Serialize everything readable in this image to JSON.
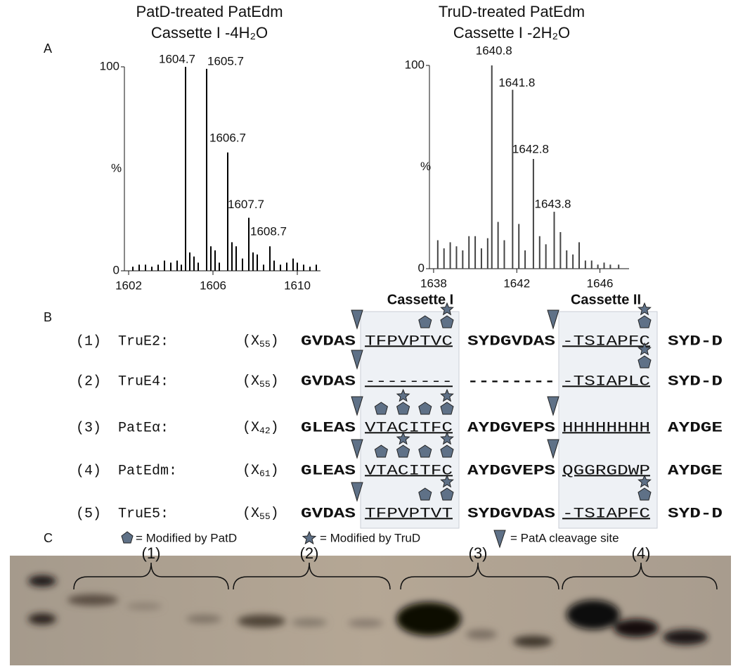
{
  "panel_labels": [
    "A",
    "B",
    "C"
  ],
  "chart_data": [
    {
      "type": "bar",
      "title": "PatD-treated PatEdm",
      "subtitle": "Cassette I -4H₂O",
      "y_label": "%",
      "xlim": [
        1601.8,
        1611.1
      ],
      "ylim": [
        0,
        100
      ],
      "xticks": [
        1602,
        1606,
        1610
      ],
      "yticks": [
        0,
        100
      ],
      "series": [
        {
          "color": "#000000",
          "x": [
            1602.2,
            1602.5,
            1602.8,
            1603.1,
            1603.4,
            1603.7,
            1604.0,
            1604.3,
            1604.5,
            1604.9,
            1605.1,
            1605.3,
            1605.9,
            1606.1,
            1606.3,
            1606.9,
            1607.1,
            1607.4,
            1607.9,
            1608.1,
            1608.4,
            1608.9,
            1609.2,
            1609.5,
            1609.8,
            1610.0,
            1610.3,
            1610.6,
            1610.9
          ],
          "values": [
            2,
            3,
            3,
            2,
            3,
            5,
            4,
            5,
            3,
            9,
            7,
            4,
            12,
            10,
            4,
            14,
            12,
            6,
            9,
            8,
            3,
            5,
            3,
            4,
            6,
            4,
            3,
            2,
            3
          ]
        },
        {
          "color": "#000000",
          "labeled": true,
          "x": [
            1604.7,
            1605.7,
            1606.7,
            1607.7,
            1608.7
          ],
          "values": [
            100,
            99,
            58,
            26,
            12
          ]
        }
      ]
    },
    {
      "type": "bar",
      "title": "TruD-treated PatEdm",
      "subtitle": "Cassette I -2H₂O",
      "y_label": "%",
      "xlim": [
        1637.8,
        1647.4
      ],
      "ylim": [
        0,
        100
      ],
      "xticks": [
        1638,
        1642,
        1646
      ],
      "yticks": [
        0,
        100
      ],
      "series": [
        {
          "color": "#444444",
          "x": [
            1638.2,
            1638.5,
            1638.8,
            1639.1,
            1639.4,
            1639.7,
            1640.0,
            1640.3,
            1640.6,
            1641.1,
            1641.4,
            1642.1,
            1642.4,
            1643.1,
            1643.4,
            1644.1,
            1644.4,
            1644.7,
            1645.0,
            1645.3,
            1645.6,
            1645.9,
            1646.2,
            1646.5,
            1646.9
          ],
          "values": [
            14,
            10,
            13,
            11,
            9,
            16,
            16,
            10,
            15,
            23,
            14,
            22,
            9,
            16,
            12,
            18,
            9,
            7,
            13,
            4,
            4,
            2,
            3,
            2,
            2
          ]
        },
        {
          "color": "#444444",
          "labeled": true,
          "x": [
            1640.8,
            1641.8,
            1642.8,
            1643.8
          ],
          "values": [
            100,
            88,
            54,
            28
          ]
        }
      ]
    }
  ],
  "alignment": {
    "cassette_headers": [
      "Cassette I",
      "Cassette II"
    ],
    "count_prefix": "(X",
    "count_suffix": ")",
    "rows": [
      {
        "number": "(1)",
        "name": "TruE2:",
        "count": "55",
        "leader": "GVDAS",
        "cassette1": "TFPVPTVC",
        "linker": "SYDGVDAS",
        "cassette2": "-TSIAPFC",
        "tail": "SYD-D"
      },
      {
        "number": "(2)",
        "name": "TruE4:",
        "count": "55",
        "leader": "GVDAS",
        "cassette1": "--------",
        "linker": "--------",
        "cassette2": "-TSIAPLC",
        "tail": "SYD-D"
      },
      {
        "number": "(3)",
        "name": "PatEα:",
        "count": "42",
        "leader": "GLEAS",
        "cassette1": "VTACITFC",
        "linker": "AYDGVEPS",
        "cassette2": "HHHHHHHH",
        "tail": "AYDGE"
      },
      {
        "number": "(4)",
        "name": "PatEdm:",
        "count": "61",
        "leader": "GLEAS",
        "cassette1": "VTACITFC",
        "linker": "AYDGVEPS",
        "cassette2": "QGGRGDWP",
        "tail": "AYDGE"
      },
      {
        "number": "(5)",
        "name": "TruE5:",
        "count": "55",
        "leader": "GVDAS",
        "cassette1": "TFPVPTVT",
        "linker": "SYDGVDAS",
        "cassette2": "-TSIAPFC",
        "tail": "SYD-D"
      }
    ],
    "legend": [
      "= Modified by PatD",
      "= Modified by TruD",
      "= PatA cleavage site"
    ]
  },
  "gel": {
    "lane_groups": [
      "(1)",
      "(2)",
      "(3)",
      "(4)"
    ]
  }
}
